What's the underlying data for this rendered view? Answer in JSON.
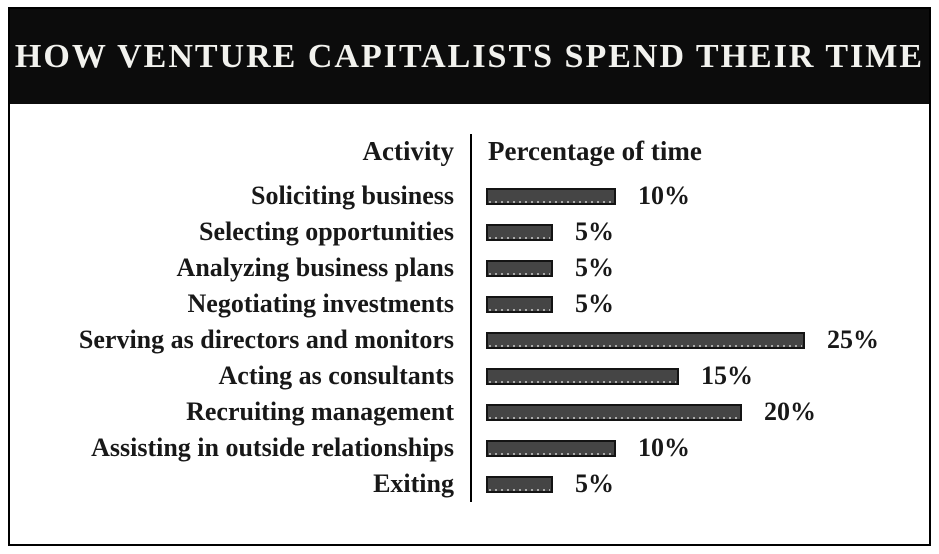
{
  "window": {
    "title": "HOW VENTURE CAPITALISTS SPEND THEIR TIME"
  },
  "table_headers": {
    "activity": "Activity",
    "percentage": "Percentage of time"
  },
  "colors": {
    "band_bg": "#0c0c0c",
    "title_text": "#f2f2ee",
    "bar_fill": "#454545",
    "bar_border": "#141414",
    "divider": "#000000"
  },
  "chart_data": {
    "type": "bar",
    "orientation": "horizontal",
    "title": "HOW VENTURE CAPITALISTS SPEND THEIR TIME",
    "categories": [
      "Soliciting business",
      "Selecting opportunities",
      "Analyzing business plans",
      "Negotiating investments",
      "Serving as directors and monitors",
      "Acting as consultants",
      "Recruiting management",
      "Assisting in outside relationships",
      "Exiting"
    ],
    "values": [
      10,
      5,
      5,
      5,
      25,
      15,
      20,
      10,
      5
    ],
    "value_labels": [
      "10%",
      "5%",
      "5%",
      "5%",
      "25%",
      "15%",
      "20%",
      "10%",
      "5%"
    ],
    "unit": "percent",
    "xlabel": "Percentage of time",
    "ylabel": "Activity",
    "xlim": [
      0,
      25
    ],
    "grid": false,
    "legend": false
  }
}
